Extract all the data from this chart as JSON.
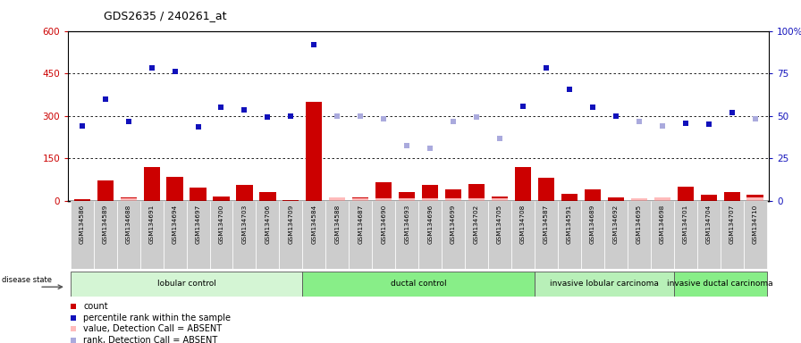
{
  "title": "GDS2635 / 240261_at",
  "samples": [
    "GSM134586",
    "GSM134589",
    "GSM134688",
    "GSM134691",
    "GSM134694",
    "GSM134697",
    "GSM134700",
    "GSM134703",
    "GSM134706",
    "GSM134709",
    "GSM134584",
    "GSM134588",
    "GSM134687",
    "GSM134690",
    "GSM134693",
    "GSM134696",
    "GSM134699",
    "GSM134702",
    "GSM134705",
    "GSM134708",
    "GSM134587",
    "GSM134591",
    "GSM134689",
    "GSM134692",
    "GSM134695",
    "GSM134698",
    "GSM134701",
    "GSM134704",
    "GSM134707",
    "GSM134710"
  ],
  "count_values": [
    5,
    70,
    10,
    120,
    85,
    45,
    15,
    55,
    30,
    3,
    350,
    5,
    10,
    65,
    30,
    55,
    40,
    60,
    15,
    120,
    80,
    25,
    40,
    10,
    5,
    10,
    50,
    20,
    30,
    20
  ],
  "rank_values": [
    265,
    360,
    280,
    470,
    455,
    260,
    330,
    320,
    295,
    300,
    550,
    300,
    300,
    290,
    195,
    185,
    280,
    295,
    220,
    335,
    470,
    395,
    330,
    300,
    280,
    265,
    275,
    270,
    310,
    290
  ],
  "rank_absent_flags": [
    false,
    false,
    false,
    false,
    false,
    false,
    false,
    false,
    false,
    false,
    false,
    true,
    true,
    true,
    true,
    true,
    true,
    true,
    true,
    false,
    false,
    false,
    false,
    false,
    true,
    true,
    false,
    false,
    false,
    true
  ],
  "value_absent_flags": [
    false,
    false,
    true,
    false,
    false,
    false,
    false,
    false,
    false,
    false,
    false,
    true,
    true,
    true,
    true,
    true,
    true,
    true,
    true,
    false,
    false,
    false,
    false,
    false,
    true,
    true,
    false,
    false,
    false,
    true
  ],
  "value_absent_vals": [
    0,
    0,
    8,
    0,
    0,
    0,
    0,
    0,
    0,
    0,
    0,
    12,
    8,
    8,
    8,
    8,
    8,
    8,
    8,
    0,
    0,
    0,
    0,
    0,
    8,
    10,
    0,
    0,
    0,
    10
  ],
  "groups": [
    {
      "label": "lobular control",
      "start": 0,
      "end": 10,
      "color": "#d4f5d4"
    },
    {
      "label": "ductal control",
      "start": 10,
      "end": 20,
      "color": "#88ee88"
    },
    {
      "label": "invasive lobular carcinoma",
      "start": 20,
      "end": 26,
      "color": "#b8f0b8"
    },
    {
      "label": "invasive ductal carcinoma",
      "start": 26,
      "end": 30,
      "color": "#88ee88"
    }
  ],
  "ylim_left": [
    0,
    600
  ],
  "ylim_right": [
    0,
    100
  ],
  "yticks_left": [
    0,
    150,
    300,
    450,
    600
  ],
  "yticks_right": [
    0,
    25,
    50,
    75,
    100
  ],
  "ytick_labels_left": [
    "0",
    "150",
    "300",
    "450",
    "600"
  ],
  "ytick_labels_right": [
    "0",
    "25",
    "50",
    "75",
    "100%"
  ],
  "color_count": "#cc0000",
  "color_rank": "#1111bb",
  "color_rank_absent": "#aaaadd",
  "color_value_absent": "#ffbbbb",
  "bg_plot": "#ffffff",
  "bg_xtick": "#cccccc",
  "bg_figure": "#ffffff",
  "grid_color": "#000000",
  "title_fontsize": 9,
  "bar_width": 0.7
}
